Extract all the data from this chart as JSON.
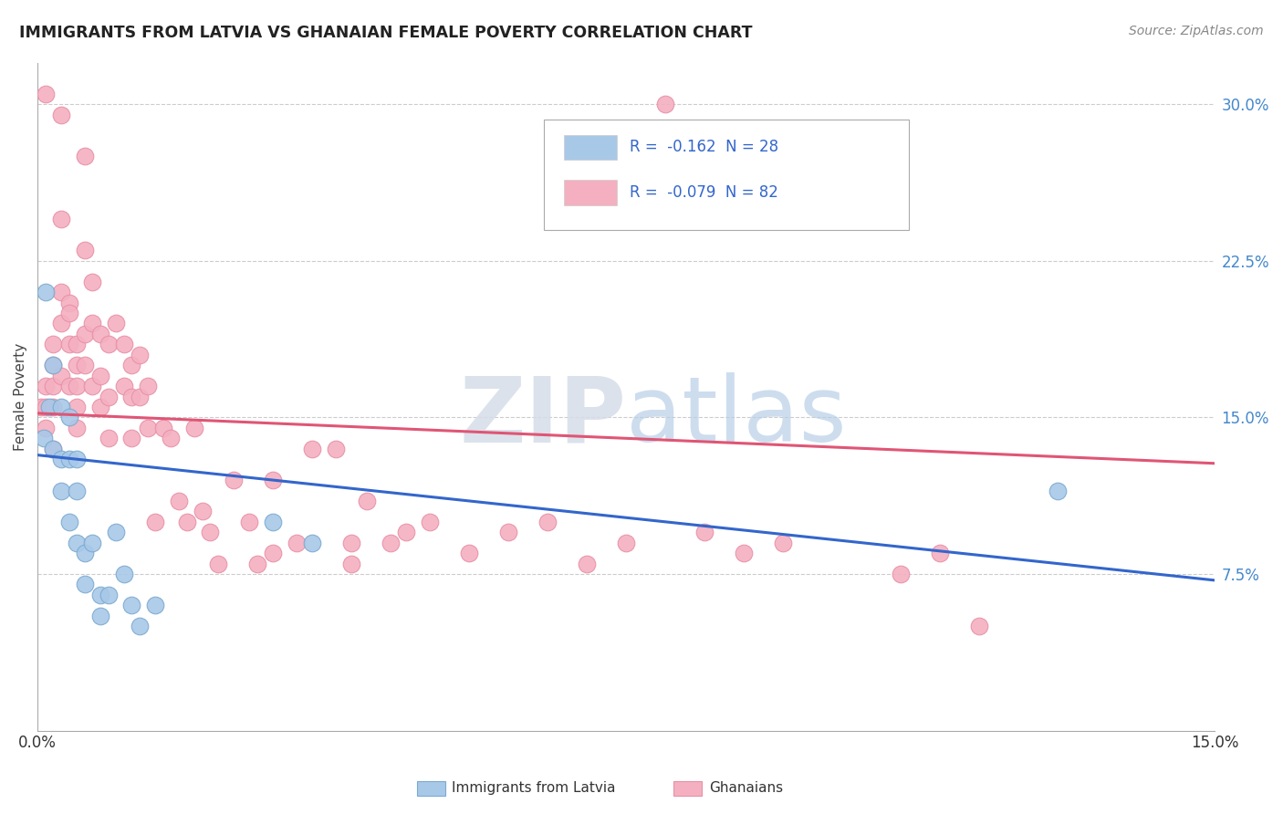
{
  "title": "IMMIGRANTS FROM LATVIA VS GHANAIAN FEMALE POVERTY CORRELATION CHART",
  "source": "Source: ZipAtlas.com",
  "ylabel": "Female Poverty",
  "x_min": 0.0,
  "x_max": 0.15,
  "y_min": 0.0,
  "y_max": 0.32,
  "y_ticks": [
    0.075,
    0.15,
    0.225,
    0.3
  ],
  "y_tick_labels": [
    "7.5%",
    "15.0%",
    "22.5%",
    "30.0%"
  ],
  "x_tick_labels": [
    "0.0%",
    "15.0%"
  ],
  "blue_color": "#a8c8e8",
  "pink_color": "#f4b0c0",
  "blue_edge": "#7aaad0",
  "pink_edge": "#e890a8",
  "blue_line_color": "#3366cc",
  "pink_line_color": "#e05575",
  "blue_R": -0.162,
  "blue_N": 28,
  "pink_R": -0.079,
  "pink_N": 82,
  "blue_line_start_y": 0.132,
  "blue_line_end_y": 0.072,
  "pink_line_start_y": 0.152,
  "pink_line_end_y": 0.128,
  "blue_scatter_x": [
    0.0008,
    0.001,
    0.0015,
    0.002,
    0.002,
    0.003,
    0.003,
    0.003,
    0.004,
    0.004,
    0.004,
    0.005,
    0.005,
    0.005,
    0.006,
    0.006,
    0.007,
    0.008,
    0.008,
    0.009,
    0.01,
    0.011,
    0.012,
    0.013,
    0.015,
    0.03,
    0.035,
    0.13
  ],
  "blue_scatter_y": [
    0.14,
    0.21,
    0.155,
    0.175,
    0.135,
    0.155,
    0.13,
    0.115,
    0.15,
    0.13,
    0.1,
    0.13,
    0.115,
    0.09,
    0.085,
    0.07,
    0.09,
    0.065,
    0.055,
    0.065,
    0.095,
    0.075,
    0.06,
    0.05,
    0.06,
    0.1,
    0.09,
    0.115
  ],
  "pink_scatter_x": [
    0.0005,
    0.001,
    0.001,
    0.001,
    0.001,
    0.002,
    0.002,
    0.002,
    0.002,
    0.002,
    0.003,
    0.003,
    0.003,
    0.003,
    0.003,
    0.004,
    0.004,
    0.004,
    0.004,
    0.005,
    0.005,
    0.005,
    0.005,
    0.005,
    0.006,
    0.006,
    0.006,
    0.006,
    0.007,
    0.007,
    0.007,
    0.008,
    0.008,
    0.008,
    0.009,
    0.009,
    0.009,
    0.01,
    0.011,
    0.011,
    0.012,
    0.012,
    0.012,
    0.013,
    0.013,
    0.014,
    0.014,
    0.015,
    0.016,
    0.017,
    0.018,
    0.019,
    0.02,
    0.021,
    0.022,
    0.023,
    0.025,
    0.027,
    0.028,
    0.03,
    0.03,
    0.033,
    0.035,
    0.038,
    0.04,
    0.04,
    0.042,
    0.045,
    0.047,
    0.05,
    0.055,
    0.06,
    0.065,
    0.07,
    0.075,
    0.08,
    0.085,
    0.09,
    0.095,
    0.11,
    0.115,
    0.12
  ],
  "pink_scatter_y": [
    0.155,
    0.305,
    0.165,
    0.155,
    0.145,
    0.185,
    0.175,
    0.165,
    0.155,
    0.135,
    0.295,
    0.245,
    0.21,
    0.195,
    0.17,
    0.205,
    0.2,
    0.185,
    0.165,
    0.185,
    0.175,
    0.165,
    0.155,
    0.145,
    0.275,
    0.23,
    0.19,
    0.175,
    0.215,
    0.195,
    0.165,
    0.19,
    0.17,
    0.155,
    0.185,
    0.16,
    0.14,
    0.195,
    0.185,
    0.165,
    0.175,
    0.16,
    0.14,
    0.18,
    0.16,
    0.165,
    0.145,
    0.1,
    0.145,
    0.14,
    0.11,
    0.1,
    0.145,
    0.105,
    0.095,
    0.08,
    0.12,
    0.1,
    0.08,
    0.085,
    0.12,
    0.09,
    0.135,
    0.135,
    0.09,
    0.08,
    0.11,
    0.09,
    0.095,
    0.1,
    0.085,
    0.095,
    0.1,
    0.08,
    0.09,
    0.3,
    0.095,
    0.085,
    0.09,
    0.075,
    0.085,
    0.05
  ]
}
